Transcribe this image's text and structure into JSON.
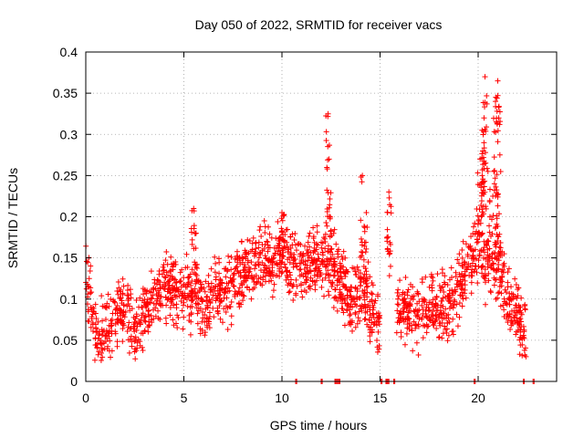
{
  "chart_data": {
    "type": "scatter",
    "title": "Day 050 of 2022, SRMTID for receiver vacs",
    "xlabel": "GPS time / hours",
    "ylabel": "SRMTID / TECUs",
    "xlim": [
      0,
      24
    ],
    "ylim": [
      0,
      0.4
    ],
    "xticks": [
      0,
      5,
      10,
      15,
      20
    ],
    "xtick_labels": [
      "0",
      "5",
      "10",
      "15",
      "20"
    ],
    "yticks": [
      0,
      0.05,
      0.1,
      0.15,
      0.2,
      0.25,
      0.3,
      0.35,
      0.4
    ],
    "ytick_labels": [
      "0",
      "0.05",
      "0.1",
      "0.15",
      "0.2",
      "0.25",
      "0.3",
      "0.35",
      "0.4"
    ],
    "grid": true,
    "marker": "+",
    "color": "#ff0000",
    "series": [
      {
        "name": "SRMTID",
        "trend": [
          [
            0.0,
            0.135
          ],
          [
            0.3,
            0.085
          ],
          [
            0.6,
            0.05
          ],
          [
            1.0,
            0.065
          ],
          [
            1.5,
            0.08
          ],
          [
            2.0,
            0.095
          ],
          [
            2.5,
            0.06
          ],
          [
            3.0,
            0.075
          ],
          [
            3.5,
            0.11
          ],
          [
            4.0,
            0.115
          ],
          [
            4.5,
            0.11
          ],
          [
            5.0,
            0.1
          ],
          [
            5.5,
            0.115
          ],
          [
            6.0,
            0.085
          ],
          [
            6.5,
            0.11
          ],
          [
            7.0,
            0.105
          ],
          [
            7.5,
            0.12
          ],
          [
            8.0,
            0.13
          ],
          [
            8.5,
            0.14
          ],
          [
            9.0,
            0.145
          ],
          [
            9.5,
            0.145
          ],
          [
            10.0,
            0.16
          ],
          [
            10.5,
            0.14
          ],
          [
            11.0,
            0.135
          ],
          [
            11.5,
            0.145
          ],
          [
            12.0,
            0.15
          ],
          [
            12.5,
            0.14
          ],
          [
            13.0,
            0.125
          ],
          [
            13.5,
            0.095
          ],
          [
            14.0,
            0.11
          ],
          [
            14.5,
            0.09
          ],
          [
            15.0,
            0.08
          ],
          [
            15.5,
            0.14
          ],
          [
            16.0,
            0.09
          ],
          [
            16.5,
            0.085
          ],
          [
            17.0,
            0.08
          ],
          [
            17.5,
            0.09
          ],
          [
            18.0,
            0.085
          ],
          [
            18.5,
            0.095
          ],
          [
            19.0,
            0.11
          ],
          [
            19.5,
            0.15
          ],
          [
            20.0,
            0.17
          ],
          [
            20.5,
            0.14
          ],
          [
            21.0,
            0.14
          ],
          [
            21.5,
            0.1
          ],
          [
            22.0,
            0.08
          ],
          [
            22.5,
            0.06
          ]
        ],
        "spread": 0.045,
        "spikes": [
          {
            "x": 5.5,
            "y": 0.21
          },
          {
            "x": 10.0,
            "y": 0.205
          },
          {
            "x": 12.35,
            "y": 0.325
          },
          {
            "x": 12.4,
            "y": 0.27
          },
          {
            "x": 14.1,
            "y": 0.25
          },
          {
            "x": 14.3,
            "y": 0.205
          },
          {
            "x": 15.45,
            "y": 0.23
          },
          {
            "x": 20.1,
            "y": 0.27
          },
          {
            "x": 20.2,
            "y": 0.305
          },
          {
            "x": 20.3,
            "y": 0.32
          },
          {
            "x": 20.35,
            "y": 0.37
          },
          {
            "x": 20.5,
            "y": 0.255
          },
          {
            "x": 20.9,
            "y": 0.345
          },
          {
            "x": 21.0,
            "y": 0.365
          },
          {
            "x": 21.05,
            "y": 0.32
          },
          {
            "x": 20.8,
            "y": 0.255
          }
        ],
        "zero_points": [
          10.7,
          12.0,
          12.7,
          12.8,
          12.9,
          15.05,
          15.3,
          15.4,
          15.7,
          19.8,
          22.3,
          22.8
        ],
        "gaps": [
          [
            15.0,
            15.45
          ],
          [
            15.55,
            15.85
          ]
        ]
      }
    ]
  }
}
